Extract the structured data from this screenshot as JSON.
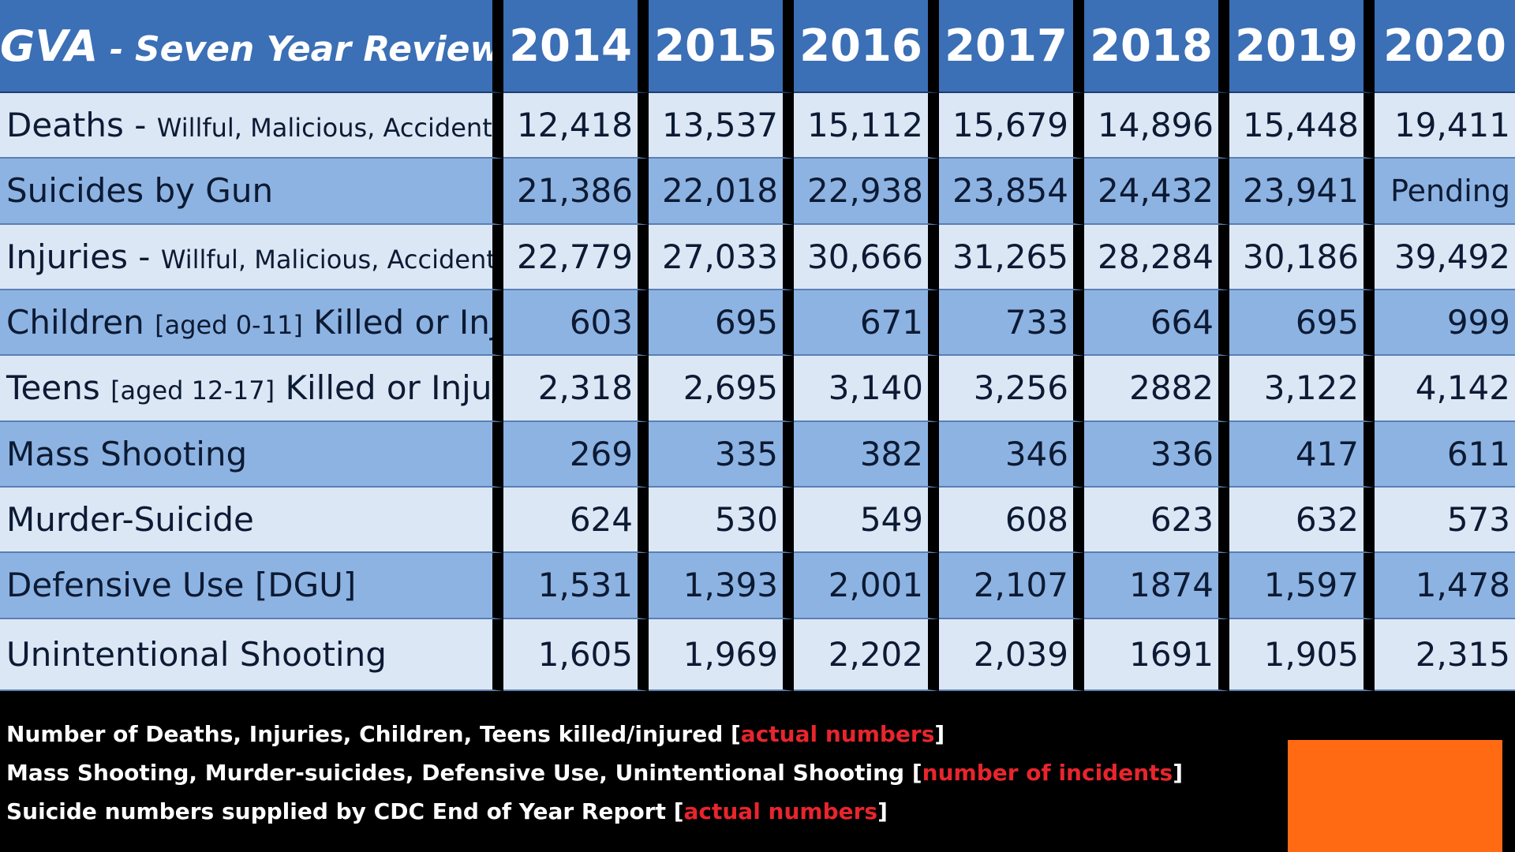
{
  "header": {
    "title_main": "GVA",
    "title_sep": " - ",
    "title_sub": "Seven Year Review"
  },
  "chart_data": {
    "type": "table",
    "columns": [
      "2014",
      "2015",
      "2016",
      "2017",
      "2018",
      "2019",
      "2020"
    ],
    "rows": [
      {
        "main": "Deaths - ",
        "sub": "Willful, Malicious, Accidental",
        "tail": "",
        "values": [
          "12,418",
          "13,537",
          "15,112",
          "15,679",
          "14,896",
          "15,448",
          "19,411"
        ]
      },
      {
        "main": "Suicides by Gun",
        "sub": "",
        "tail": "",
        "values": [
          "21,386",
          "22,018",
          "22,938",
          "23,854",
          "24,432",
          "23,941",
          "Pending"
        ]
      },
      {
        "main": "Injuries - ",
        "sub": "Willful, Malicious, Accidental",
        "tail": "",
        "values": [
          "22,779",
          "27,033",
          "30,666",
          "31,265",
          "28,284",
          "30,186",
          "39,492"
        ]
      },
      {
        "main": "Children ",
        "sub": "[aged 0-11]",
        "tail": " Killed or Injured",
        "values": [
          "603",
          "695",
          "671",
          "733",
          "664",
          "695",
          "999"
        ]
      },
      {
        "main": "Teens ",
        "sub": "[aged 12-17]",
        "tail": " Killed or Injured",
        "values": [
          "2,318",
          "2,695",
          "3,140",
          "3,256",
          "2882",
          "3,122",
          "4,142"
        ]
      },
      {
        "main": "Mass Shooting",
        "sub": "",
        "tail": "",
        "values": [
          "269",
          "335",
          "382",
          "346",
          "336",
          "417",
          "611"
        ]
      },
      {
        "main": "Murder-Suicide",
        "sub": "",
        "tail": "",
        "values": [
          "624",
          "530",
          "549",
          "608",
          "623",
          "632",
          "573"
        ]
      },
      {
        "main": "Defensive Use [DGU]",
        "sub": "",
        "tail": "",
        "values": [
          "1,531",
          "1,393",
          "2,001",
          "2,107",
          "1874",
          "1,597",
          "1,478"
        ]
      },
      {
        "main": "Unintentional Shooting",
        "sub": "",
        "tail": "",
        "values": [
          "1,605",
          "1,969",
          "2,202",
          "2,039",
          "1691",
          "1,905",
          "2,315"
        ]
      }
    ]
  },
  "footnotes": [
    {
      "text": "Number of Deaths, Injuries, Children, Teens  killed/injured [",
      "tag": "actual numbers",
      "end": "]"
    },
    {
      "text": "Mass Shooting, Murder-suicides, Defensive Use, Unintentional Shooting [",
      "tag": "number of incidents",
      "end": "]"
    },
    {
      "text": "Suicide numbers supplied by CDC End of Year Report [",
      "tag": "actual numbers",
      "end": "]"
    }
  ],
  "colors": {
    "header_blue": "#3b6fb6",
    "row_light": "#dce7f6",
    "row_dark": "#8db3e2",
    "footnote_red": "#e8252d",
    "orange_box": "#ff6a13",
    "background": "#000000"
  }
}
